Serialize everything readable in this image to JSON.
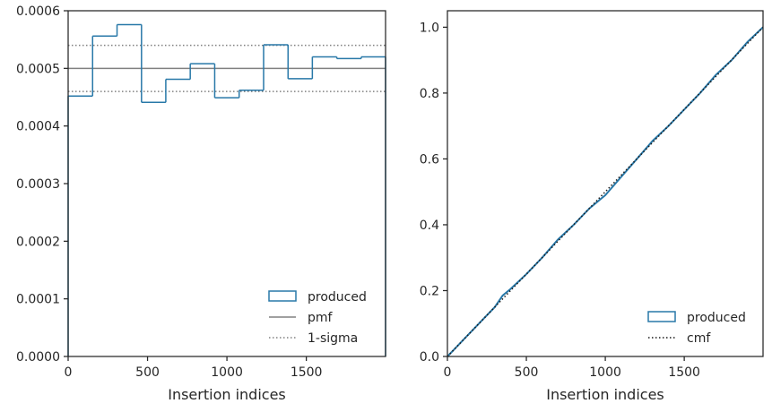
{
  "chart_data": [
    {
      "type": "step",
      "title": "",
      "xlabel": "Insertion indices",
      "ylabel": "",
      "xlim": [
        0,
        1999
      ],
      "ylim": [
        0,
        0.0006
      ],
      "xticks": [
        0,
        500,
        1000,
        1500
      ],
      "xtick_labels": [
        "0",
        "500",
        "1000",
        "1500"
      ],
      "yticks": [
        0,
        0.0001,
        0.0002,
        0.0003,
        0.0004,
        0.0005,
        0.0006
      ],
      "ytick_labels": [
        "0.0000",
        "0.0001",
        "0.0002",
        "0.0003",
        "0.0004",
        "0.0005",
        "0.0006"
      ],
      "grid": false,
      "legend_position": "lower-right",
      "series": [
        {
          "name": "produced",
          "kind": "histogram-step",
          "color": "#2878a8",
          "bin_edges": [
            0,
            154,
            308,
            462,
            615,
            769,
            923,
            1077,
            1231,
            1385,
            1538,
            1692,
            1846,
            1999
          ],
          "values": [
            0.000452,
            0.000556,
            0.000576,
            0.000441,
            0.000481,
            0.000508,
            0.000449,
            0.000462,
            0.000541,
            0.000482,
            0.00052,
            0.000517,
            0.00052
          ]
        },
        {
          "name": "pmf",
          "kind": "hline",
          "color": "#808080",
          "y": 0.0005
        },
        {
          "name": "1-sigma",
          "kind": "hline-dotted",
          "color": "#808080",
          "y": [
            0.00046,
            0.00054
          ]
        }
      ]
    },
    {
      "type": "line",
      "title": "",
      "xlabel": "Insertion indices",
      "ylabel": "",
      "xlim": [
        0,
        1999
      ],
      "ylim": [
        0,
        1.05
      ],
      "xticks": [
        0,
        500,
        1000,
        1500
      ],
      "xtick_labels": [
        "0",
        "500",
        "1000",
        "1500"
      ],
      "yticks": [
        0,
        0.2,
        0.4,
        0.6,
        0.8,
        1.0
      ],
      "ytick_labels": [
        "0.0",
        "0.2",
        "0.4",
        "0.6",
        "0.8",
        "1.0"
      ],
      "grid": false,
      "legend_position": "lower-right",
      "series": [
        {
          "name": "produced",
          "kind": "cumulative-step",
          "color": "#2878a8",
          "x": [
            0,
            100,
            200,
            300,
            350,
            400,
            500,
            600,
            700,
            800,
            900,
            1000,
            1100,
            1200,
            1300,
            1400,
            1500,
            1600,
            1700,
            1800,
            1900,
            1999
          ],
          "y": [
            0,
            0.05,
            0.1,
            0.15,
            0.185,
            0.205,
            0.25,
            0.3,
            0.355,
            0.4,
            0.45,
            0.49,
            0.545,
            0.6,
            0.655,
            0.7,
            0.75,
            0.8,
            0.855,
            0.9,
            0.955,
            1.0
          ]
        },
        {
          "name": "cmf",
          "kind": "line-dotted",
          "color": "#1a1a1a",
          "x": [
            0,
            1999
          ],
          "y": [
            0,
            1.0
          ]
        }
      ]
    }
  ]
}
